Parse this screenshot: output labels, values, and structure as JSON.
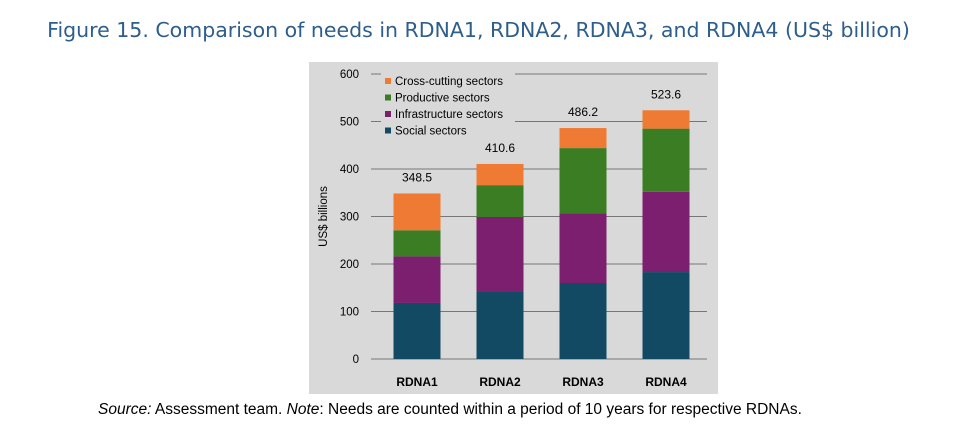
{
  "figure_title": "Figure 15. Comparison of needs in RDNA1, RDNA2, RDNA3, and RDNA4 (US$ billion)",
  "footer": {
    "source_label": "Source:",
    "source_text": " Assessment team. ",
    "note_label": "Note",
    "note_text": ": Needs are counted within a period of 10 years for respective RDNAs."
  },
  "chart_data": {
    "type": "bar",
    "stacked": true,
    "title": "",
    "xlabel": "",
    "ylabel": "US$ billions",
    "ylim": [
      0,
      600
    ],
    "yticks": [
      0,
      100,
      200,
      300,
      400,
      500,
      600
    ],
    "grid": true,
    "legend_position": "top-left",
    "categories": [
      "RDNA1",
      "RDNA2",
      "RDNA3",
      "RDNA4"
    ],
    "series": [
      {
        "name": "Social sectors",
        "color": "#134a63",
        "values": [
          118,
          143,
          160,
          183
        ]
      },
      {
        "name": "Infrastructure sectors",
        "color": "#7b1f6e",
        "values": [
          98,
          156,
          147,
          169
        ]
      },
      {
        "name": "Productive sectors",
        "color": "#3b7d23",
        "values": [
          55,
          67,
          137,
          133
        ]
      },
      {
        "name": "Cross-cutting sectors",
        "color": "#ef7a33",
        "values": [
          77.5,
          44.6,
          42.2,
          38.6
        ]
      }
    ],
    "legend_order": [
      "Cross-cutting sectors",
      "Productive sectors",
      "Infrastructure sectors",
      "Social sectors"
    ],
    "totals": [
      "348.5",
      "410.6",
      "486.2",
      "523.6"
    ]
  }
}
